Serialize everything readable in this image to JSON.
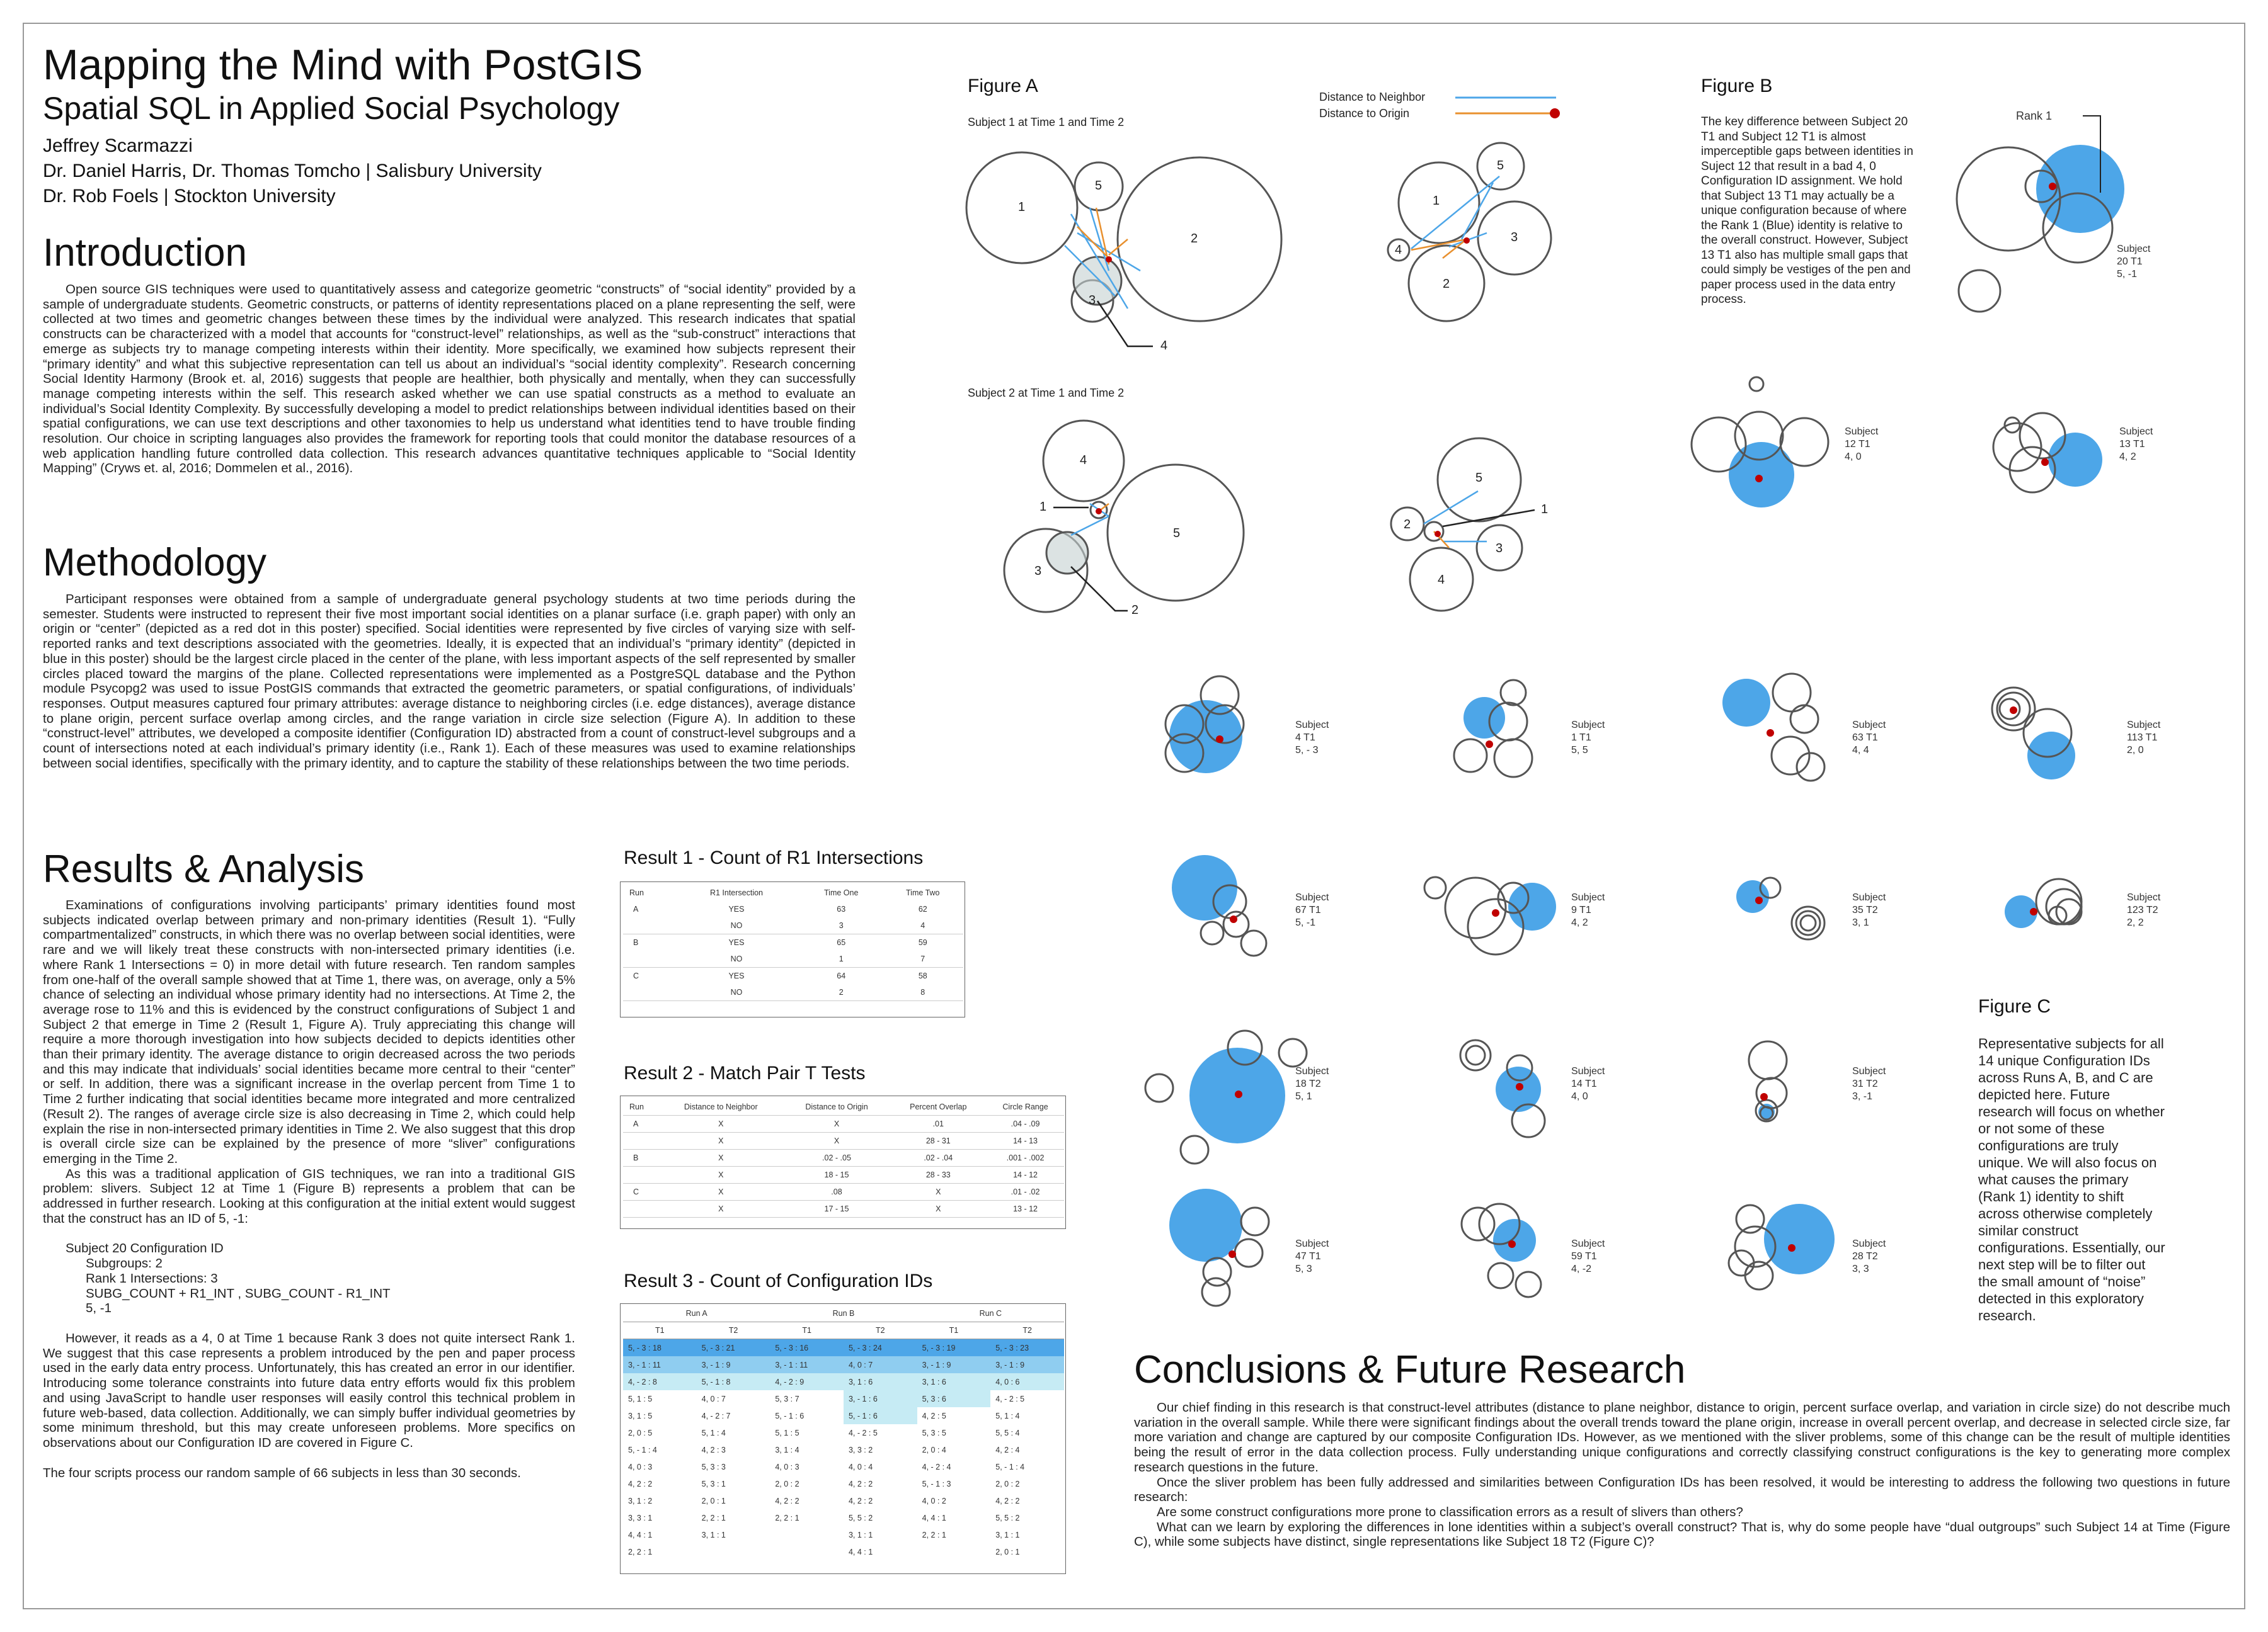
{
  "title": "Mapping the Mind with PostGIS",
  "subtitle": "Spatial SQL in Applied Social Psychology",
  "authors": [
    "Jeffrey Scarmazzi",
    "Dr. Daniel Harris, Dr. Thomas Tomcho | Salisbury University",
    "Dr. Rob Foels | Stockton University"
  ],
  "introduction": {
    "heading": "Introduction",
    "text": "Open source GIS techniques were used to quantitatively assess and categorize geometric “constructs” of “social identity” provided by a sample of undergraduate students.  Geometric constructs, or patterns of identity representations placed on a plane representing the self, were collected at two times and geometric changes between these times by the individual were analyzed. This research indicates that spatial constructs can be characterized with a model that accounts for “construct-level” relationships, as well as the “sub-construct” interactions that emerge as subjects try to manage competing interests within their identity. More specifically, we examined how subjects represent their “primary identity” and what this subjective representation can tell us about an individual’s “social identity complexity”. Research concerning Social Identity Harmony (Brook et. al, 2016) suggests that people are healthier, both physically and mentally, when they can successfully manage competing interests within the self. This research asked whether we can use spatial constructs as a method to evaluate an individual’s Social Identity Complexity. By successfully developing a model to predict relationships between individual identities based on their spatial configurations, we can use text descriptions and other taxonomies to help us understand what identities tend to have trouble finding resolution. Our choice in scripting languages also provides the framework for reporting tools that could monitor the database resources of a web application handling future controlled data collection. This research advances quantitative techniques applicable to “Social Identity Mapping” (Cryws et. al, 2016; Dommelen et al., 2016)."
  },
  "methodology": {
    "heading": "Methodology",
    "text": "Participant responses were obtained from a sample of undergraduate general psychology students at two time periods during the semester. Students were instructed to represent their five most important social identities on a planar surface (i.e. graph paper) with only an origin or “center” (depicted as a red dot in this poster) specified. Social identities were represented by five circles of varying size with self-reported ranks and text descriptions associated with the geometries. Ideally, it is expected that an individual’s “primary identity” (depicted in blue in this poster) should be the largest circle placed in the center of the plane, with less important aspects of the self represented by smaller circles placed toward the margins of the plane. Collected representations were implemented as a PostgreSQL database and the Python module Psycopg2 was used to issue PostGIS commands that extracted the geometric parameters, or spatial configurations, of individuals’ responses. Output measures captured four primary attributes: average distance to neighboring circles (i.e. edge distances), average distance to plane origin, percent surface overlap among circles, and the range variation in circle size selection (Figure A). In addition to these “construct-level” attributes, we developed a composite identifier (Configuration ID) abstracted from a count of construct-level subgroups and a count of intersections noted at each individual’s primary identity (i.e., Rank 1). Each of these measures was used to examine relationships between social identifies, specifically with the primary identity, and to capture the stability of these relationships between the two time periods."
  },
  "results": {
    "heading": "Results & Analysis",
    "p1": "Examinations of configurations involving participants’ primary identities found most subjects indicated overlap between primary and non-primary identities (Result 1). “Fully compartmentalized” constructs, in which there was no overlap between social identities, were rare and we will likely treat these constructs with non-intersected primary identities (i.e. where Rank 1 Intersections = 0) in more detail with future research.  Ten random samples from one-half of the overall sample showed that at Time 1, there was, on average, only a 5% chance of selecting an individual whose primary identity had no intersections. At Time 2, the average rose to 11% and this is evidenced by the construct configurations of Subject 1 and Subject 2 that emerge in Time 2 (Result 1, Figure A). Truly appreciating this change will require a more thorough investigation into how subjects decided to depicts identities other than their primary identity. The average distance to origin decreased across the two periods and this may indicate that individuals’ social identities became more central to their “center” or self. In addition, there was a significant increase in the overlap percent from Time 1 to Time 2 further indicating that social identities became more integrated and more centralized (Result 2). The ranges of average circle size is also decreasing in Time 2, which could help explain the rise in non-intersected primary identities in Time 2. We also suggest that this drop is overall circle size can be explained by the presence of more “sliver” configurations emerging in the Time 2.",
    "p2": "As this was a traditional application of GIS techniques, we ran into a traditional GIS problem: slivers. Subject 12 at Time 1 (Figure B) represents a problem that can be addressed in further research. Looking at this configuration at the initial extent would suggest that the construct has an ID of 5, -1:",
    "cfg_lines": [
      "Subject 20 Configuration ID",
      "Subgroups: 2",
      "Rank 1 Intersections: 3",
      "SUBG_COUNT + R1_INT  ,  SUBG_COUNT - R1_INT",
      "5, -1"
    ],
    "p3": "However, it reads as a 4, 0 at Time 1 because Rank 3 does not quite intersect Rank 1. We suggest that this case represents a problem introduced by the pen and paper process used in the early data entry process. Unfortunately, this has created an error in our identifier. Introducing some tolerance constraints into future data entry efforts would fix this problem and using JavaScript to handle user responses will easily  control this technical problem in future  web-based, data collection. Additionally, we can simply buffer individual geometries by some minimum threshold, but this may create unforeseen problems. More specifics on observations about our Configuration ID are covered in Figure C.",
    "p4": "The four scripts process our random sample of 66 subjects in less than 30 seconds."
  },
  "result1": {
    "title": "Result 1 - Count of R1 Intersections",
    "headers": [
      "Run",
      "R1 Intersection",
      "Time One",
      "Time Two"
    ],
    "rows": [
      [
        "A",
        "YES",
        "63",
        "62"
      ],
      [
        "",
        "NO",
        "3",
        "4"
      ],
      [
        "B",
        "YES",
        "65",
        "59"
      ],
      [
        "",
        "NO",
        "1",
        "7"
      ],
      [
        "C",
        "YES",
        "64",
        "58"
      ],
      [
        "",
        "NO",
        "2",
        "8"
      ]
    ]
  },
  "result2": {
    "title": "Result 2 - Match Pair T Tests",
    "headers": [
      "Run",
      "Distance to Neighbor",
      "Distance to Origin",
      "Percent Overlap",
      "Circle Range"
    ],
    "rows": [
      [
        "A",
        "X",
        "X",
        ".01",
        ".04 - .09"
      ],
      [
        "",
        "X",
        "X",
        "28 - 31",
        "14 - 13"
      ],
      [
        "B",
        "X",
        ".02 - .05",
        ".02 - .04",
        ".001 - .002"
      ],
      [
        "",
        "X",
        "18 - 15",
        "28 - 33",
        "14 - 12"
      ],
      [
        "C",
        "X",
        ".08",
        "X",
        ".01 - .02"
      ],
      [
        "",
        "X",
        "17 - 15",
        "X",
        "13 - 12"
      ]
    ]
  },
  "result3": {
    "title": "Result 3 - Count of Configuration IDs",
    "runs": [
      "Run A",
      "Run B",
      "Run C"
    ],
    "subheaders": [
      "T1",
      "T2",
      "T1",
      "T2",
      "T1",
      "T2"
    ],
    "rows": [
      [
        "5, - 3 : 18",
        "5, - 3 : 21",
        "5, - 3 : 16",
        "5, - 3 : 24",
        "5, - 3 : 19",
        "5, - 3 : 23"
      ],
      [
        "3, - 1 : 11",
        "3, - 1 : 9",
        "3, - 1 : 11",
        "4, 0 : 7",
        "3, - 1 : 9",
        "3, - 1 : 9"
      ],
      [
        "4, - 2 : 8",
        "5, - 1 : 8",
        "4, - 2 : 9",
        "3, 1 : 6",
        "3, 1 : 6",
        "4, 0 : 6"
      ],
      [
        "5, 1 : 5",
        "4, 0 : 7",
        "5, 3 : 7",
        "3, - 1 : 6",
        "5, 3 : 6",
        "4, - 2 : 5"
      ],
      [
        "3, 1 : 5",
        "4, - 2 : 7",
        "5, - 1 : 6",
        "5, - 1 : 6",
        "4, 2 : 5",
        "5, 1 : 4"
      ],
      [
        "2, 0 : 5",
        "5, 1 : 4",
        "5, 1 : 5",
        "4, - 2 : 5",
        "5, 3 : 5",
        "5, 5 : 4"
      ],
      [
        "5, - 1 : 4",
        "4, 2 : 3",
        "3, 1 : 4",
        "3, 3 : 2",
        "2, 0 : 4",
        "4, 2 : 4"
      ],
      [
        "4, 0 : 3",
        "5, 3 : 3",
        "4, 0 : 3",
        "4, 0 : 4",
        "4, - 2 : 4",
        "5, - 1 : 4"
      ],
      [
        "4, 2 : 2",
        "5, 3 : 1",
        "2, 0 : 2",
        "4, 2 : 2",
        "5, - 1 : 3",
        "2, 0 : 2"
      ],
      [
        "3, 1 : 2",
        "2, 0 : 1",
        "4, 2 : 2",
        "4, 2 : 2",
        "4, 0 : 2",
        "4, 2 : 2"
      ],
      [
        "3, 3 : 1",
        "2, 2 : 1",
        "2, 2 : 1",
        "5, 5 : 2",
        "4, 4 : 1",
        "5, 5 : 2"
      ],
      [
        "4, 4 : 1",
        "3, 1 : 1",
        "",
        "3, 1 : 1",
        "2, 2 : 1",
        "3, 1 : 1"
      ],
      [
        "2, 2 : 1",
        "",
        "",
        "4, 4 : 1",
        "",
        "2, 0 : 1"
      ]
    ]
  },
  "figureA": {
    "label": "Figure A",
    "sub1": "Subject 1 at Time 1 and Time 2",
    "sub2": "Subject 2 at Time 1 and Time 2",
    "legend_neighbor": "Distance to Neighbor",
    "legend_origin": "Distance to Origin",
    "colors": {
      "neighbor": "#4da6e8",
      "origin": "#e8902e",
      "origin_dot": "#c00000"
    },
    "labels": {
      "s1t1": [
        "1",
        "5",
        "2",
        "3",
        "4"
      ],
      "s1t2": [
        "5",
        "1",
        "3",
        "4",
        "2"
      ],
      "s2t1": [
        "4",
        "1",
        "5",
        "3",
        "2"
      ],
      "s2t2": [
        "5",
        "2",
        "1",
        "3",
        "4"
      ]
    }
  },
  "figureB": {
    "label": "Figure B",
    "text": "The key difference between Subject 20 T1 and Subject 12 T1 is almost imperceptible gaps between identities in Suject 12 that result in a bad 4, 0 Configuration ID assignment. We hold that Subject 13 T1 may actually be a unique configuration because of where the Rank 1 (Blue) identity is relative to the overall construct. However, Subject 13 T1 also has multiple small gaps that could simply be vestiges of the pen and paper process used in the data entry process.",
    "rank_label": "Rank 1",
    "captions": [
      [
        "Subject 20 T1",
        "5, -1"
      ],
      [
        "Subject 12 T1",
        "4, 0"
      ],
      [
        "Subject 13 T1",
        "4, 2"
      ]
    ],
    "primary_color": "#4da6e8"
  },
  "figureC": {
    "label": "Figure C",
    "text": "Representative subjects for all 14 unique Configuration IDs across Runs A, B, and C are depicted here. Future research will focus on whether or not some of these configurations are truly unique. We will also focus on what causes the primary (Rank 1) identity to shift across otherwise completely similar construct configurations. Essentially, our next step will be to filter out the small amount of “noise” detected in this exploratory research.",
    "captions": [
      [
        "Subject 4 T1",
        "5, - 3"
      ],
      [
        "Subject 1 T1",
        "5, 5"
      ],
      [
        "Subject 63 T1",
        "4, 4"
      ],
      [
        "Subject 113 T1",
        "2, 0"
      ],
      [
        "Subject 67 T1",
        "5, -1"
      ],
      [
        "Subject 9 T1",
        "4, 2"
      ],
      [
        "Subject 35 T2",
        "3, 1"
      ],
      [
        "Subject 123 T2",
        "2, 2"
      ],
      [
        "Subject 18 T2",
        "5, 1"
      ],
      [
        "Subject 14 T1",
        "4, 0"
      ],
      [
        "Subject 31 T2",
        "3, -1"
      ],
      [
        "Subject 47 T1",
        "5, 3"
      ],
      [
        "Subject 59 T1",
        "4, -2"
      ],
      [
        "Subject 28 T2",
        "3, 3"
      ]
    ]
  },
  "conclusions": {
    "heading": "Conclusions & Future Research",
    "p1": "Our chief finding in this research is that construct-level attributes (distance to plane neighbor, distance to origin, percent surface overlap, and variation in circle size) do not describe much variation in the overall sample. While there were significant findings about the overall trends toward the plane origin, increase in overall percent overlap, and decrease in selected circle size, far more variation and change are captured by our composite Configuration IDs. However, as we mentioned with the sliver problems, some of this change can be the result of multiple identities being the result of error in the data collection process. Fully understanding unique configurations and correctly classifying construct configurations is the key to generating more complex research questions in the future.",
    "p2": "Once the sliver problem has been fully addressed and similarities between Configuration IDs has been resolved, it would be interesting to address the following two questions in future research:",
    "q1": "Are some construct configurations more prone to classification errors as a result of slivers than others?",
    "q2": "What can we learn by exploring the differences in lone identities within a subject’s overall construct? That is, why do some people have “dual outgroups” such Subject 14 at Time (Figure C), while some subjects have distinct, single representations like Subject 18 T2 (Figure C)?"
  }
}
